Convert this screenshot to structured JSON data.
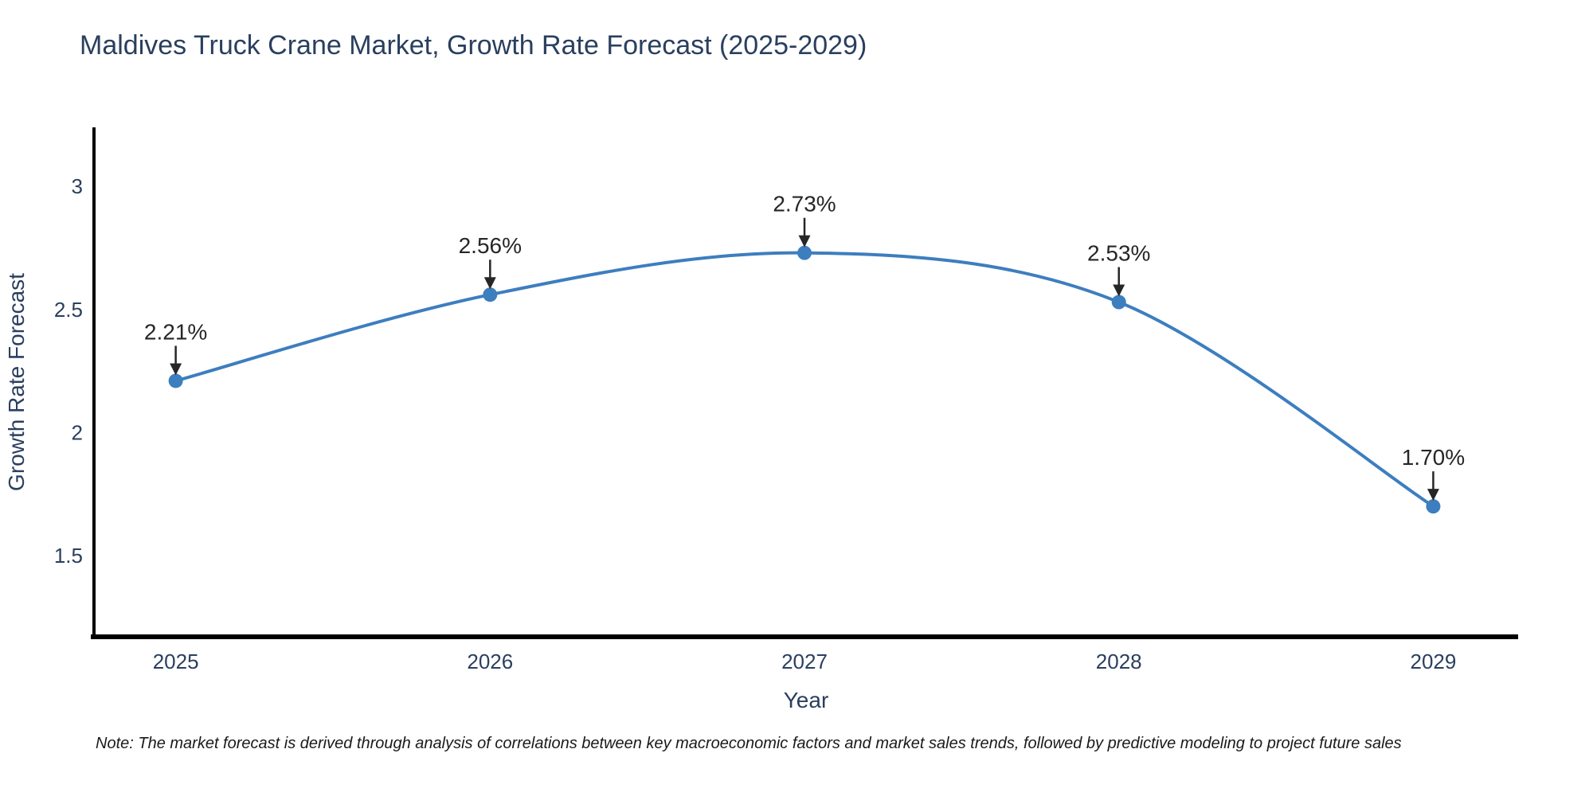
{
  "title": "Maldives Truck Crane Market, Growth Rate Forecast (2025-2029)",
  "note": "Note: The market forecast is derived through analysis of correlations between key macroeconomic factors and market sales trends, followed by predictive modeling to project future sales",
  "chart_data": {
    "type": "line",
    "curve": "spline",
    "title": "Maldives Truck Crane Market, Growth Rate Forecast (2025-2029)",
    "xlabel": "Year",
    "ylabel": "Growth Rate Forecast",
    "x": [
      2025,
      2026,
      2027,
      2028,
      2029
    ],
    "values": [
      2.21,
      2.56,
      2.73,
      2.53,
      1.7
    ],
    "point_labels": [
      "2.21%",
      "2.56%",
      "2.73%",
      "2.53%",
      "1.70%"
    ],
    "x_tick_labels": [
      "2025",
      "2026",
      "2027",
      "2028",
      "2029"
    ],
    "y_ticks": [
      3,
      2.5,
      2,
      1.5
    ],
    "y_tick_labels": [
      "3",
      "2.5",
      "2",
      "1.5"
    ],
    "xlim": [
      2024.74,
      2029.27
    ],
    "ylim": [
      1.17,
      3.24
    ],
    "grid": false,
    "legend": "none",
    "colors": {
      "line": "#3d7ebf",
      "marker": "#3d7ebf",
      "axis": "#000000",
      "tick_text": "#2a3f5f",
      "title_text": "#2a3f5f",
      "annotation": "#262626"
    }
  }
}
